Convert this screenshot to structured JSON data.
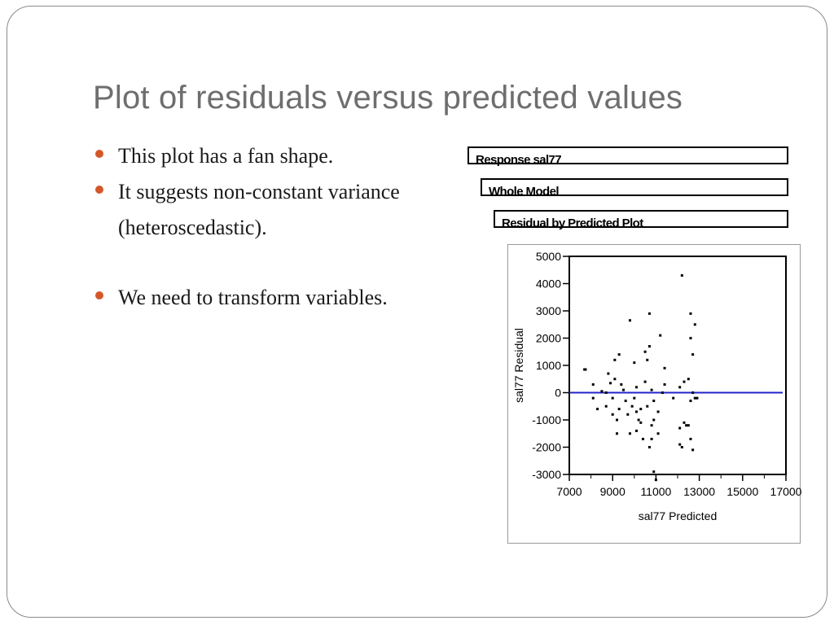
{
  "slide": {
    "title": "Plot of residuals versus predicted values",
    "bullets": [
      {
        "text": "This plot has a fan shape."
      },
      {
        "text": "It suggests non-constant variance (heteroscedastic)."
      },
      {
        "text": "We need to transform variables."
      }
    ],
    "bullet_color": "#d4572a"
  },
  "jmp_panels": {
    "response": "Response sal77",
    "whole_model": "Whole Model",
    "residual_plot": "Residual by Predicted Plot"
  },
  "chart_data": {
    "type": "scatter",
    "xlabel": "sal77 Predicted",
    "ylabel": "sal77 Residual",
    "xlim": [
      7000,
      17000
    ],
    "ylim": [
      -3000,
      5000
    ],
    "x_ticks": [
      "7000",
      "9000",
      "11000",
      "13000",
      "15000",
      "17000"
    ],
    "x_tick_values": [
      7000,
      9000,
      11000,
      13000,
      15000,
      17000
    ],
    "y_ticks": [
      "5000",
      "4000",
      "3000",
      "2000",
      "1000",
      "0",
      "-1000",
      "-2000",
      "-3000"
    ],
    "y_tick_values": [
      5000,
      4000,
      3000,
      2000,
      1000,
      0,
      -1000,
      -2000,
      -3000
    ],
    "reference_line": {
      "y": 0,
      "color": "#2323c8"
    },
    "point_color": "#000000",
    "points": [
      [
        7700,
        850
      ],
      [
        7750,
        850
      ],
      [
        8100,
        300
      ],
      [
        8100,
        -200
      ],
      [
        8300,
        -600
      ],
      [
        8500,
        50
      ],
      [
        8700,
        -500
      ],
      [
        8700,
        0
      ],
      [
        8800,
        700
      ],
      [
        8900,
        350
      ],
      [
        9000,
        -800
      ],
      [
        9000,
        -200
      ],
      [
        9100,
        1200
      ],
      [
        9100,
        500
      ],
      [
        9200,
        -1000
      ],
      [
        9200,
        -1500
      ],
      [
        9300,
        1400
      ],
      [
        9300,
        -600
      ],
      [
        9400,
        300
      ],
      [
        9500,
        100
      ],
      [
        9600,
        -300
      ],
      [
        9700,
        -800
      ],
      [
        9800,
        -1500
      ],
      [
        9800,
        2650
      ],
      [
        9900,
        -500
      ],
      [
        10000,
        1100
      ],
      [
        10000,
        -200
      ],
      [
        10100,
        -700
      ],
      [
        10100,
        200
      ],
      [
        10100,
        -1400
      ],
      [
        10200,
        -1000
      ],
      [
        10300,
        -600
      ],
      [
        10300,
        -1100
      ],
      [
        10400,
        -1700
      ],
      [
        10500,
        1500
      ],
      [
        10500,
        400
      ],
      [
        10600,
        -500
      ],
      [
        10600,
        1200
      ],
      [
        10700,
        1700
      ],
      [
        10700,
        2900
      ],
      [
        10700,
        -2000
      ],
      [
        10800,
        100
      ],
      [
        10800,
        -1200
      ],
      [
        10800,
        -1700
      ],
      [
        10900,
        -2900
      ],
      [
        10900,
        -300
      ],
      [
        10900,
        -1000
      ],
      [
        11000,
        -3200
      ],
      [
        11100,
        -700
      ],
      [
        11100,
        -1500
      ],
      [
        11200,
        2100
      ],
      [
        11300,
        0
      ],
      [
        11400,
        900
      ],
      [
        11400,
        300
      ],
      [
        11800,
        -200
      ],
      [
        12100,
        -1300
      ],
      [
        12100,
        -1900
      ],
      [
        12100,
        200
      ],
      [
        12200,
        -2000
      ],
      [
        12200,
        4300
      ],
      [
        12300,
        -1100
      ],
      [
        12300,
        400
      ],
      [
        12400,
        -1200
      ],
      [
        12500,
        500
      ],
      [
        12500,
        -1200
      ],
      [
        12600,
        -1700
      ],
      [
        12600,
        2900
      ],
      [
        12600,
        2000
      ],
      [
        12600,
        -300
      ],
      [
        12700,
        1400
      ],
      [
        12700,
        -2100
      ],
      [
        12700,
        0
      ],
      [
        12800,
        2500
      ],
      [
        12800,
        -200
      ],
      [
        12900,
        -200
      ]
    ]
  }
}
